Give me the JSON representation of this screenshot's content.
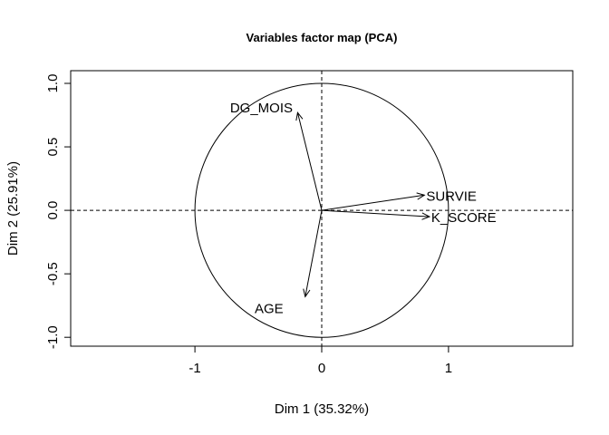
{
  "chart_data": {
    "type": "scatter",
    "title": "Variables factor map (PCA)",
    "xlabel": "Dim 1 (35.32%)",
    "ylabel": "Dim 2 (25.91%)",
    "xlim": [
      -1.98,
      1.98
    ],
    "ylim": [
      -1.07,
      1.1
    ],
    "x_ticks": [
      {
        "value": -1,
        "label": "-1"
      },
      {
        "value": 0,
        "label": "0"
      },
      {
        "value": 1,
        "label": "1"
      }
    ],
    "y_ticks": [
      {
        "value": -1.0,
        "label": "-1.0"
      },
      {
        "value": -0.5,
        "label": "-0.5"
      },
      {
        "value": 0.0,
        "label": "0.0"
      },
      {
        "value": 0.5,
        "label": "0.5"
      },
      {
        "value": 1.0,
        "label": "1.0"
      }
    ],
    "circle": {
      "radius": 1
    },
    "variables": [
      {
        "name": "DG_MOIS",
        "x": -0.19,
        "y": 0.77
      },
      {
        "name": "SURVIE",
        "x": 0.81,
        "y": 0.12
      },
      {
        "name": "K_SCORE",
        "x": 0.85,
        "y": -0.05
      },
      {
        "name": "AGE",
        "x": -0.13,
        "y": -0.68
      }
    ],
    "grid": false,
    "legend": "none"
  }
}
